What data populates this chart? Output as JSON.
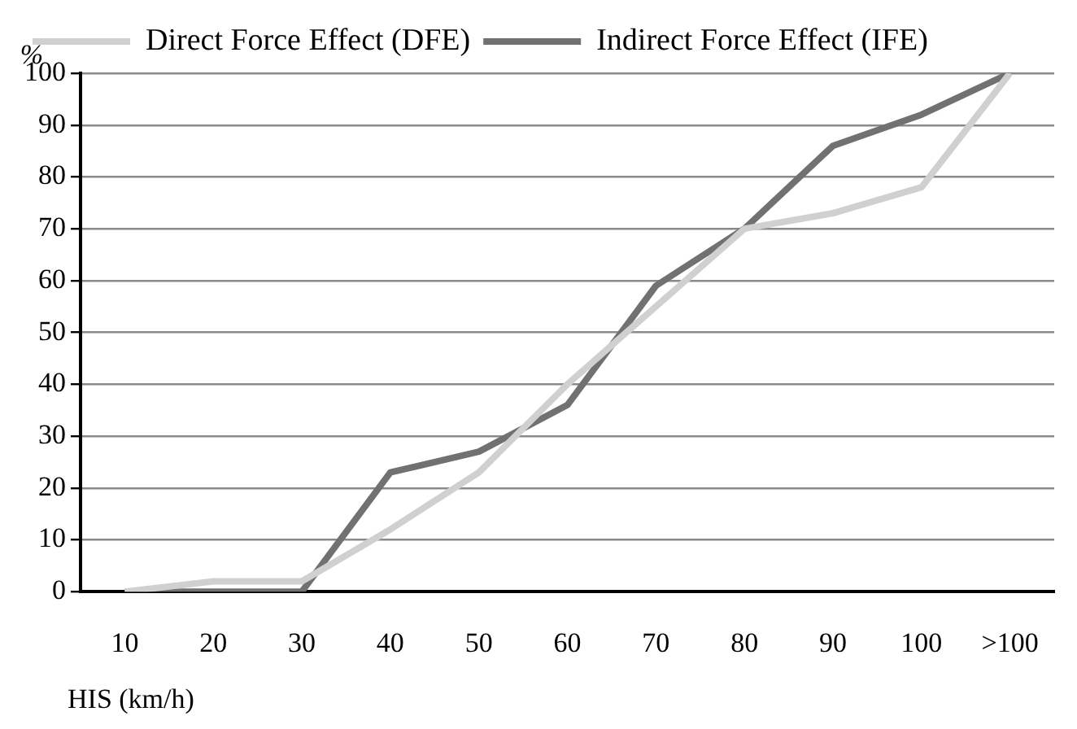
{
  "chart_data": {
    "type": "line",
    "xlabel": "HIS (km/h)",
    "ylabel": "%",
    "categories": [
      "10",
      "20",
      "30",
      "40",
      "50",
      "60",
      "70",
      "80",
      "90",
      "100",
      ">100"
    ],
    "series": [
      {
        "name": "Direct Force Effect (DFE)",
        "color": "#d0d0d0",
        "values": [
          0,
          2,
          2,
          12,
          23,
          40,
          55,
          70,
          73,
          78,
          100
        ]
      },
      {
        "name": "Indirect Force Effect (IFE)",
        "color": "#717171",
        "values": [
          0,
          0,
          0,
          23,
          27,
          36,
          59,
          70,
          86,
          92,
          100
        ]
      }
    ],
    "ylim": [
      0,
      100
    ],
    "yticks": [
      0,
      10,
      20,
      30,
      40,
      50,
      60,
      70,
      80,
      90,
      100
    ],
    "grid": "y",
    "legend": "top",
    "marker": "none",
    "line_style": "solid"
  }
}
